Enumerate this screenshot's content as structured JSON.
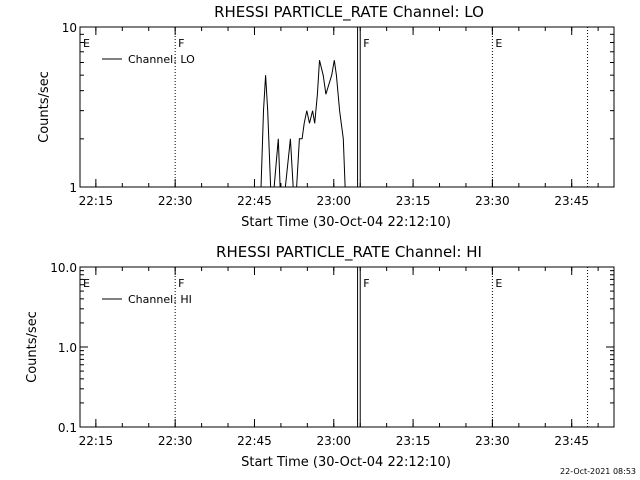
{
  "timestamp": "22-Oct-2021 08:53",
  "colors": {
    "background": "#ffffff",
    "foreground": "#000000"
  },
  "chart_data": [
    {
      "type": "line",
      "title": "RHESSI PARTICLE_RATE Channel: LO",
      "xlabel": "Start Time (30-Oct-04 22:12:10)",
      "ylabel": "Counts/sec",
      "yscale": "log",
      "xlim": [
        "22:12",
        "23:53"
      ],
      "ylim": [
        1,
        10
      ],
      "x_ticks": [
        "22:15",
        "22:30",
        "22:45",
        "23:00",
        "23:15",
        "23:30",
        "23:45"
      ],
      "y_ticks": [
        {
          "value": 1,
          "label": "1"
        },
        {
          "value": 10,
          "label": "10"
        }
      ],
      "legend": {
        "position": "top-left",
        "entries": [
          "Channel: LO"
        ]
      },
      "flags": [
        {
          "time": "22:12",
          "label": "E",
          "line": "none"
        },
        {
          "time": "22:30",
          "label": "F",
          "line": "dotted"
        },
        {
          "time": "23:05",
          "label": "F",
          "line": "solid"
        },
        {
          "time": "23:30",
          "label": "E",
          "line": "dotted"
        },
        {
          "time": "23:48",
          "label": "",
          "line": "dotted"
        }
      ],
      "extra_lines": [
        {
          "time": "23:04.5",
          "line": "solid"
        }
      ],
      "series": [
        {
          "name": "Channel: LO",
          "x": [
            "22:46.2",
            "22:46.7",
            "22:47.1",
            "22:47.5",
            "22:48.1",
            "22:48.6",
            "22:49.5",
            "22:49.9",
            "22:50.3",
            "22:50.7",
            "22:51.8",
            "22:52.4",
            "22:52.9",
            "22:53.5",
            "22:54.0",
            "22:54.4",
            "22:54.9",
            "22:55.4",
            "22:56.0",
            "22:56.4",
            "22:56.9",
            "22:57.3",
            "22:58.0",
            "22:58.5",
            "22:59.0",
            "22:59.6",
            "23:00.1",
            "23:00.5",
            "23:01.1",
            "23:01.8",
            "23:02.2",
            "23:02.7",
            "23:03.3"
          ],
          "y": [
            0.9,
            3.0,
            5.0,
            3.0,
            0.9,
            0.9,
            2.0,
            0.9,
            0.9,
            0.9,
            2.0,
            0.9,
            0.9,
            2.0,
            2.0,
            2.5,
            3.0,
            2.5,
            3.0,
            2.5,
            3.8,
            6.2,
            5.0,
            3.8,
            4.3,
            5.0,
            6.2,
            5.0,
            3.0,
            2.0,
            0.9,
            0.9,
            0.9
          ]
        }
      ]
    },
    {
      "type": "line",
      "title": "RHESSI PARTICLE_RATE Channel: HI",
      "xlabel": "Start Time (30-Oct-04 22:12:10)",
      "ylabel": "Counts/sec",
      "yscale": "log",
      "xlim": [
        "22:12",
        "23:53"
      ],
      "ylim": [
        0.1,
        10
      ],
      "x_ticks": [
        "22:15",
        "22:30",
        "22:45",
        "23:00",
        "23:15",
        "23:30",
        "23:45"
      ],
      "y_ticks": [
        {
          "value": 0.1,
          "label": "0.1"
        },
        {
          "value": 1,
          "label": "1.0"
        },
        {
          "value": 10,
          "label": "10.0"
        }
      ],
      "legend": {
        "position": "top-left",
        "entries": [
          "Channel: HI"
        ]
      },
      "flags": [
        {
          "time": "22:12",
          "label": "E",
          "line": "none"
        },
        {
          "time": "22:30",
          "label": "F",
          "line": "dotted"
        },
        {
          "time": "23:05",
          "label": "F",
          "line": "solid"
        },
        {
          "time": "23:30",
          "label": "E",
          "line": "dotted"
        },
        {
          "time": "23:48",
          "label": "",
          "line": "dotted"
        }
      ],
      "extra_lines": [
        {
          "time": "23:04.5",
          "line": "solid"
        }
      ],
      "series": [
        {
          "name": "Channel: HI",
          "x": [],
          "y": []
        }
      ]
    }
  ]
}
